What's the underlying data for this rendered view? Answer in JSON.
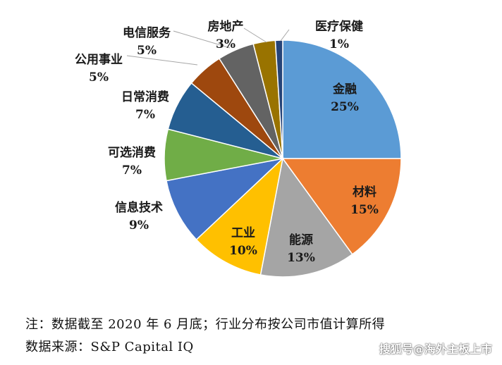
{
  "chart_data": {
    "type": "pie",
    "slices": [
      {
        "label": "金融",
        "value": 25,
        "display": "25%",
        "color": "#5b9bd5"
      },
      {
        "label": "材料",
        "value": 15,
        "display": "15%",
        "color": "#ed7d31"
      },
      {
        "label": "能源",
        "value": 13,
        "display": "13%",
        "color": "#a5a5a5"
      },
      {
        "label": "工业",
        "value": 10,
        "display": "10%",
        "color": "#ffc000"
      },
      {
        "label": "信息技术",
        "value": 9,
        "display": "9%",
        "color": "#4472c4"
      },
      {
        "label": "可选消费",
        "value": 7,
        "display": "7%",
        "color": "#70ad47"
      },
      {
        "label": "日常消费",
        "value": 7,
        "display": "7%",
        "color": "#255e91"
      },
      {
        "label": "公用事业",
        "value": 5,
        "display": "5%",
        "color": "#9e480e"
      },
      {
        "label": "电信服务",
        "value": 5,
        "display": "5%",
        "color": "#636363"
      },
      {
        "label": "房地产",
        "value": 3,
        "display": "3%",
        "color": "#997300"
      },
      {
        "label": "医疗保健",
        "value": 1,
        "display": "1%",
        "color": "#264478"
      }
    ],
    "start_angle_deg": 0,
    "direction": "clockwise"
  },
  "notes": {
    "line1": "注：数据截至 2020 年 6 月底；行业分布按公司市值计算所得",
    "line2": "数据来源：S&P Capital IQ"
  },
  "watermark": "搜狐号@海外主板上市"
}
